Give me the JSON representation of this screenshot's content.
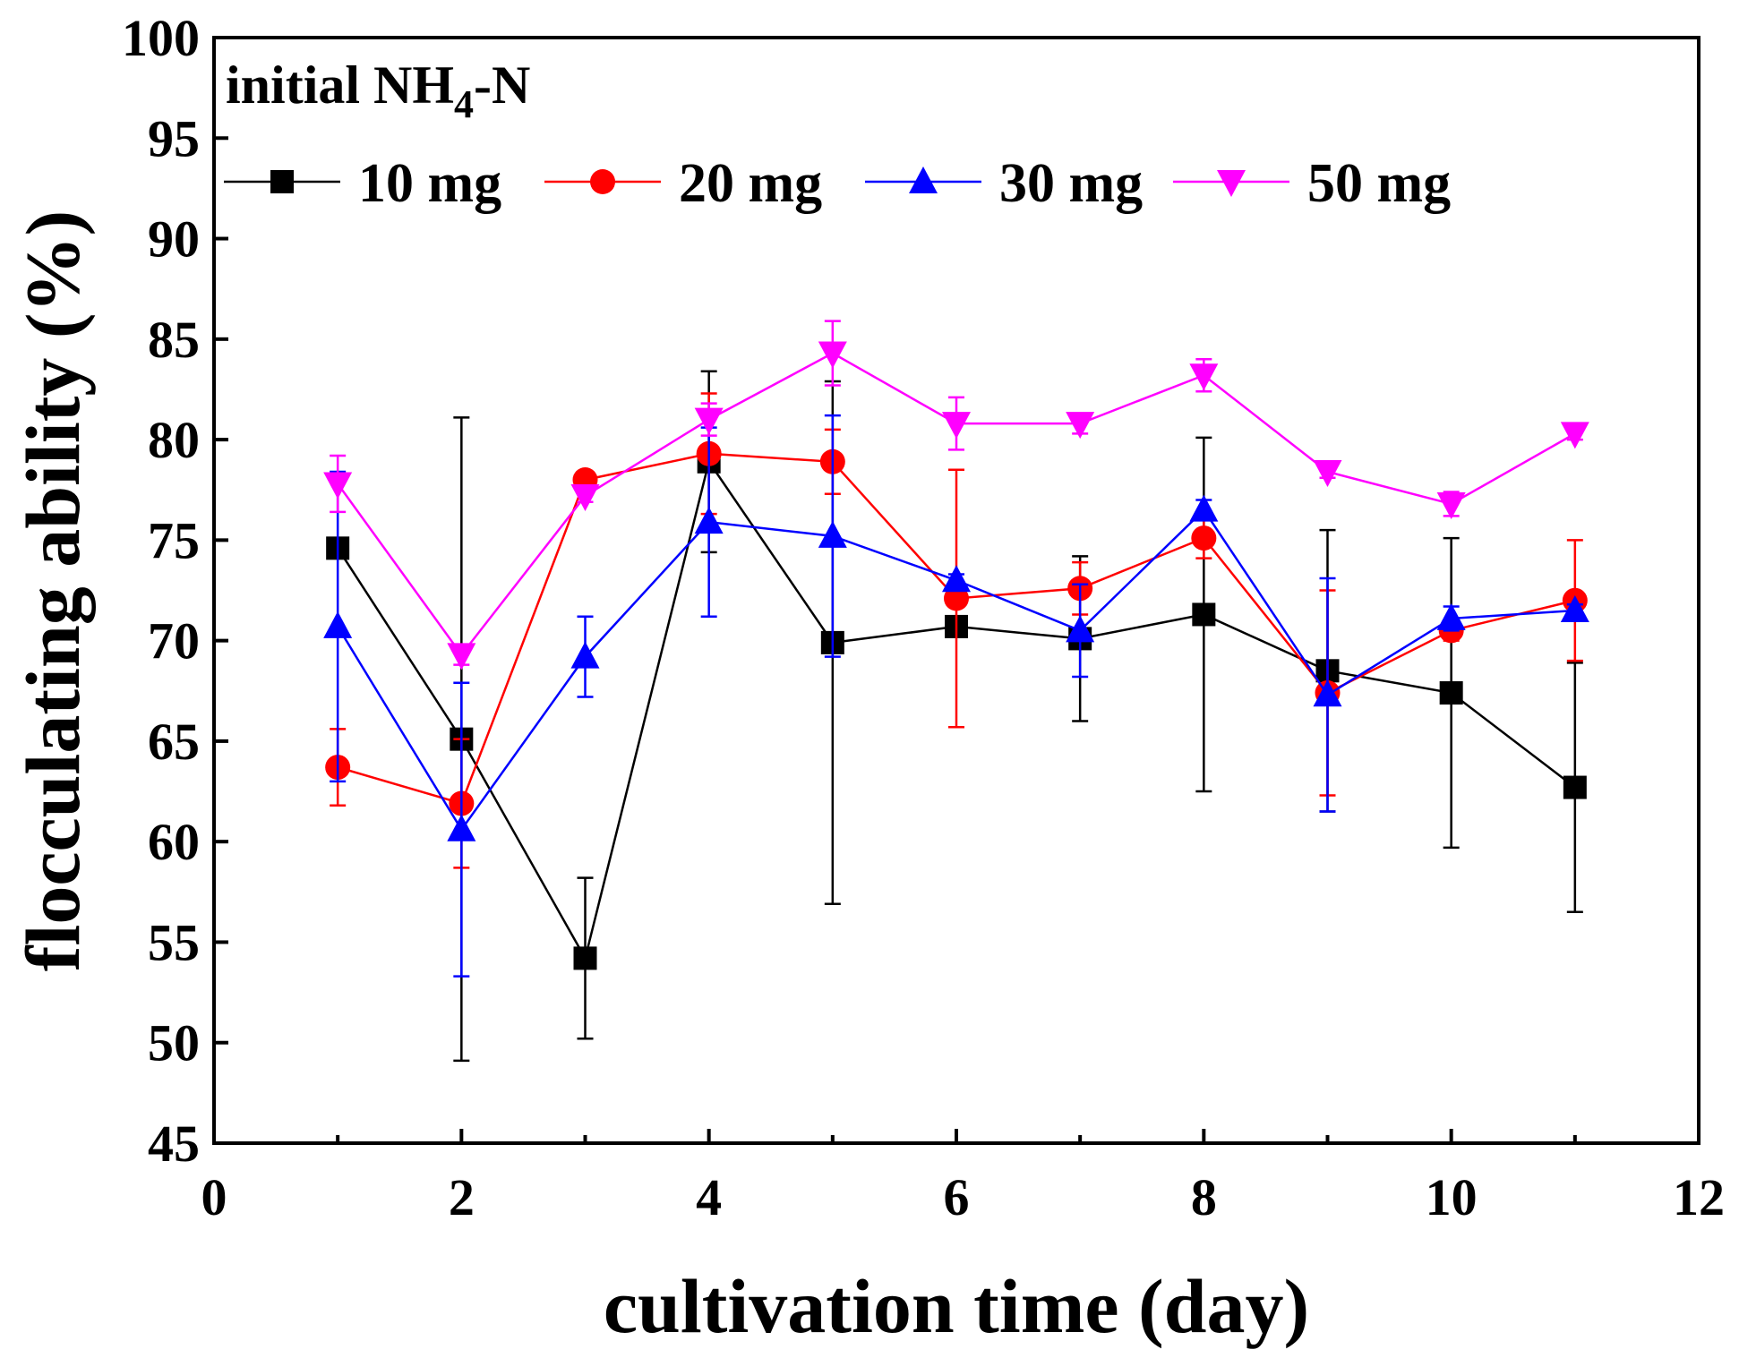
{
  "chart_data": {
    "type": "line",
    "title": "",
    "xlabel": "cultivation time (day)",
    "ylabel": "flocculating ability (%)",
    "xlim": [
      0,
      12
    ],
    "ylim": [
      45,
      100
    ],
    "xticks": [
      0,
      2,
      4,
      6,
      8,
      10,
      12
    ],
    "yticks": [
      45,
      50,
      55,
      60,
      65,
      70,
      75,
      80,
      85,
      90,
      95,
      100
    ],
    "grid": false,
    "legend": {
      "title_main": "initial NH",
      "title_sub": "4",
      "title_tail": "-N",
      "placement": "top-left"
    },
    "x": [
      1,
      2,
      3,
      4,
      5,
      6,
      7,
      8,
      9,
      10,
      11
    ],
    "series": [
      {
        "name": "10 mg",
        "color": "#000000",
        "marker": "square",
        "values": [
          74.6,
          65.1,
          54.2,
          78.9,
          69.9,
          70.7,
          70.1,
          71.3,
          68.5,
          67.4,
          62.7
        ],
        "errors": [
          0.3,
          16.0,
          4.0,
          4.5,
          13.0,
          0.5,
          4.1,
          8.8,
          7.0,
          7.7,
          6.2
        ]
      },
      {
        "name": "20 mg",
        "color": "#ff0000",
        "marker": "circle",
        "values": [
          63.7,
          61.9,
          78.0,
          79.3,
          78.9,
          72.1,
          72.6,
          75.1,
          67.4,
          70.5,
          72.0
        ],
        "errors": [
          1.9,
          3.2,
          0.3,
          3.0,
          1.6,
          6.4,
          1.3,
          1.0,
          5.1,
          0.5,
          3.0
        ]
      },
      {
        "name": "30 mg",
        "color": "#0000ff",
        "marker": "triangle-up",
        "values": [
          70.7,
          60.6,
          69.2,
          75.9,
          75.2,
          73.0,
          70.5,
          76.5,
          67.3,
          71.1,
          71.5
        ],
        "errors": [
          7.7,
          7.3,
          2.0,
          4.7,
          6.0,
          0.3,
          2.3,
          0.5,
          5.8,
          0.6,
          0.3
        ]
      },
      {
        "name": "50 mg",
        "color": "#ff00ff",
        "marker": "triangle-down",
        "values": [
          77.8,
          69.3,
          77.2,
          81.0,
          84.3,
          80.8,
          80.8,
          83.2,
          78.4,
          76.8,
          80.3
        ],
        "errors": [
          1.4,
          0.5,
          0.3,
          0.8,
          1.6,
          1.3,
          0.5,
          0.8,
          0.3,
          0.6,
          0.3
        ]
      }
    ]
  }
}
